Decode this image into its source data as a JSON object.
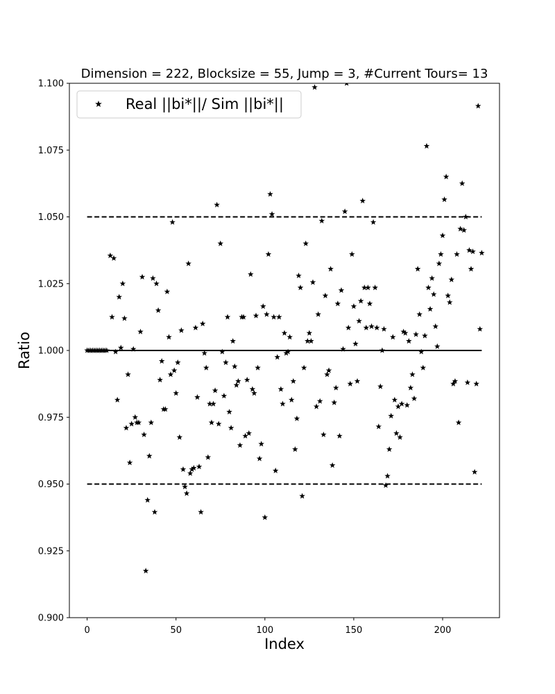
{
  "chart_data": {
    "type": "scatter",
    "title": "Dimension = 222, Blocksize = 55, Jump = 3, #Current Tours= 13",
    "xlabel": "Index",
    "ylabel": "Ratio",
    "xlim": [
      -10,
      232
    ],
    "ylim": [
      0.9,
      1.1
    ],
    "xticks": [
      0,
      50,
      100,
      150,
      200
    ],
    "yticks": [
      0.9,
      0.925,
      0.95,
      0.975,
      1.0,
      1.025,
      1.05,
      1.075,
      1.1
    ],
    "ytick_labels": [
      "0.900",
      "0.925",
      "0.950",
      "0.975",
      "1.000",
      "1.025",
      "1.050",
      "1.075",
      "1.100"
    ],
    "grid": false,
    "legend": {
      "position": "top-left",
      "entries": [
        "Real ||bi*||/ Sim ||bi*||"
      ]
    },
    "marker": "star",
    "color": "#000000",
    "reference_lines": [
      {
        "y": 1.0,
        "style": "solid",
        "x_range": [
          0,
          222
        ]
      },
      {
        "y": 1.05,
        "style": "dashed",
        "x_range": [
          0,
          222
        ]
      },
      {
        "y": 0.95,
        "style": "dashed",
        "x_range": [
          0,
          222
        ]
      }
    ],
    "series": [
      {
        "name": "Real ||bi*||/ Sim ||bi*||",
        "points": [
          [
            0,
            1.0
          ],
          [
            1,
            1.0
          ],
          [
            2,
            1.0
          ],
          [
            3,
            1.0
          ],
          [
            4,
            1.0
          ],
          [
            5,
            1.0
          ],
          [
            6,
            1.0
          ],
          [
            7,
            1.0
          ],
          [
            8,
            1.0
          ],
          [
            9,
            1.0
          ],
          [
            10,
            1.0
          ],
          [
            11,
            1.0
          ],
          [
            13,
            1.0355
          ],
          [
            14,
            1.0125
          ],
          [
            15,
            1.0345
          ],
          [
            16,
            0.9995
          ],
          [
            17,
            0.9815
          ],
          [
            18,
            1.02
          ],
          [
            19,
            1.001
          ],
          [
            20,
            1.025
          ],
          [
            21,
            1.012
          ],
          [
            22,
            0.971
          ],
          [
            23,
            0.991
          ],
          [
            24,
            0.958
          ],
          [
            25,
            0.9725
          ],
          [
            26,
            1.0005
          ],
          [
            27,
            0.975
          ],
          [
            28,
            0.973
          ],
          [
            29,
            0.973
          ],
          [
            30,
            1.007
          ],
          [
            31,
            1.0275
          ],
          [
            32,
            0.9685
          ],
          [
            33,
            0.9175
          ],
          [
            34,
            0.944
          ],
          [
            35,
            0.9605
          ],
          [
            36,
            0.973
          ],
          [
            37,
            1.027
          ],
          [
            38,
            0.9395
          ],
          [
            39,
            1.025
          ],
          [
            40,
            1.015
          ],
          [
            41,
            0.989
          ],
          [
            42,
            0.996
          ],
          [
            43,
            0.978
          ],
          [
            44,
            0.978
          ],
          [
            45,
            1.022
          ],
          [
            46,
            1.005
          ],
          [
            47,
            0.991
          ],
          [
            48,
            1.048
          ],
          [
            49,
            0.9925
          ],
          [
            50,
            0.984
          ],
          [
            51,
            0.9955
          ],
          [
            52,
            0.9675
          ],
          [
            53,
            1.0075
          ],
          [
            54,
            0.9555
          ],
          [
            55,
            0.949
          ],
          [
            56,
            0.9465
          ],
          [
            57,
            1.0325
          ],
          [
            58,
            0.954
          ],
          [
            59,
            0.9555
          ],
          [
            60,
            0.956
          ],
          [
            61,
            1.0085
          ],
          [
            62,
            0.9825
          ],
          [
            63,
            0.9565
          ],
          [
            64,
            0.9395
          ],
          [
            65,
            1.01
          ],
          [
            66,
            0.999
          ],
          [
            67,
            0.9935
          ],
          [
            68,
            0.96
          ],
          [
            69,
            0.98
          ],
          [
            70,
            0.973
          ],
          [
            71,
            0.98
          ],
          [
            72,
            0.985
          ],
          [
            73,
            1.0545
          ],
          [
            74,
            0.9725
          ],
          [
            75,
            1.04
          ],
          [
            76,
            0.9995
          ],
          [
            77,
            0.983
          ],
          [
            78,
            0.9955
          ],
          [
            79,
            1.0125
          ],
          [
            80,
            0.977
          ],
          [
            81,
            0.971
          ],
          [
            82,
            1.0035
          ],
          [
            83,
            0.994
          ],
          [
            84,
            0.987
          ],
          [
            85,
            0.9885
          ],
          [
            86,
            0.9645
          ],
          [
            87,
            1.0125
          ],
          [
            88,
            1.0125
          ],
          [
            89,
            0.968
          ],
          [
            90,
            0.989
          ],
          [
            91,
            0.969
          ],
          [
            92,
            1.0285
          ],
          [
            93,
            0.9855
          ],
          [
            94,
            0.984
          ],
          [
            95,
            1.013
          ],
          [
            96,
            0.9935
          ],
          [
            97,
            0.9595
          ],
          [
            98,
            0.965
          ],
          [
            99,
            1.0165
          ],
          [
            100,
            0.9375
          ],
          [
            101,
            1.0135
          ],
          [
            102,
            1.036
          ],
          [
            103,
            1.0585
          ],
          [
            104,
            1.051
          ],
          [
            105,
            1.0125
          ],
          [
            106,
            0.955
          ],
          [
            107,
            0.9975
          ],
          [
            108,
            1.0125
          ],
          [
            109,
            0.9855
          ],
          [
            110,
            0.98
          ],
          [
            111,
            1.0065
          ],
          [
            112,
            0.999
          ],
          [
            113,
            0.9995
          ],
          [
            114,
            1.005
          ],
          [
            115,
            0.9815
          ],
          [
            116,
            0.9885
          ],
          [
            117,
            0.963
          ],
          [
            118,
            0.9745
          ],
          [
            119,
            1.028
          ],
          [
            120,
            1.0235
          ],
          [
            121,
            0.9455
          ],
          [
            122,
            0.9935
          ],
          [
            123,
            1.04
          ],
          [
            124,
            1.0035
          ],
          [
            125,
            1.0065
          ],
          [
            126,
            1.0035
          ],
          [
            127,
            1.0255
          ],
          [
            128,
            1.0985
          ],
          [
            129,
            0.979
          ],
          [
            130,
            1.0135
          ],
          [
            131,
            0.981
          ],
          [
            132,
            1.0485
          ],
          [
            133,
            0.9685
          ],
          [
            134,
            1.0205
          ],
          [
            135,
            0.991
          ],
          [
            136,
            0.9925
          ],
          [
            137,
            1.0305
          ],
          [
            138,
            0.957
          ],
          [
            139,
            0.9805
          ],
          [
            140,
            0.986
          ],
          [
            141,
            1.0175
          ],
          [
            142,
            0.968
          ],
          [
            143,
            1.0225
          ],
          [
            144,
            1.0005
          ],
          [
            145,
            1.052
          ],
          [
            146,
            1.1
          ],
          [
            147,
            1.0085
          ],
          [
            148,
            0.9875
          ],
          [
            149,
            1.036
          ],
          [
            150,
            1.0165
          ],
          [
            151,
            1.0025
          ],
          [
            152,
            0.9885
          ],
          [
            153,
            1.011
          ],
          [
            154,
            1.0185
          ],
          [
            155,
            1.056
          ],
          [
            156,
            1.0235
          ],
          [
            157,
            1.0085
          ],
          [
            158,
            1.0235
          ],
          [
            159,
            1.0175
          ],
          [
            160,
            1.009
          ],
          [
            161,
            1.048
          ],
          [
            162,
            1.0235
          ],
          [
            163,
            1.0085
          ],
          [
            164,
            0.9715
          ],
          [
            165,
            0.9865
          ],
          [
            166,
            1.0
          ],
          [
            167,
            1.008
          ],
          [
            168,
            0.9495
          ],
          [
            169,
            0.953
          ],
          [
            170,
            0.963
          ],
          [
            171,
            0.9755
          ],
          [
            172,
            1.005
          ],
          [
            173,
            0.9815
          ],
          [
            174,
            0.969
          ],
          [
            175,
            0.979
          ],
          [
            176,
            0.9675
          ],
          [
            177,
            0.98
          ],
          [
            178,
            1.007
          ],
          [
            179,
            1.0065
          ],
          [
            180,
            0.9795
          ],
          [
            181,
            1.0035
          ],
          [
            182,
            0.986
          ],
          [
            183,
            0.991
          ],
          [
            184,
            0.982
          ],
          [
            185,
            1.006
          ],
          [
            186,
            1.0305
          ],
          [
            187,
            1.0135
          ],
          [
            188,
            0.9995
          ],
          [
            189,
            0.9935
          ],
          [
            190,
            1.0055
          ],
          [
            191,
            1.0765
          ],
          [
            192,
            1.0235
          ],
          [
            193,
            1.0155
          ],
          [
            194,
            1.027
          ],
          [
            195,
            1.021
          ],
          [
            196,
            1.009
          ],
          [
            197,
            1.0015
          ],
          [
            198,
            1.0325
          ],
          [
            199,
            1.036
          ],
          [
            200,
            1.043
          ],
          [
            201,
            1.0565
          ],
          [
            202,
            1.065
          ],
          [
            203,
            1.0205
          ],
          [
            204,
            1.018
          ],
          [
            205,
            1.0265
          ],
          [
            206,
            0.9875
          ],
          [
            207,
            0.9885
          ],
          [
            208,
            1.036
          ],
          [
            209,
            0.973
          ],
          [
            210,
            1.0455
          ],
          [
            211,
            1.0625
          ],
          [
            212,
            1.045
          ],
          [
            213,
            1.05
          ],
          [
            214,
            0.988
          ],
          [
            215,
            1.0375
          ],
          [
            216,
            1.0305
          ],
          [
            217,
            1.037
          ],
          [
            218,
            0.9545
          ],
          [
            219,
            0.9875
          ],
          [
            220,
            1.0915
          ],
          [
            221,
            1.008
          ],
          [
            222,
            1.0365
          ]
        ]
      }
    ]
  }
}
